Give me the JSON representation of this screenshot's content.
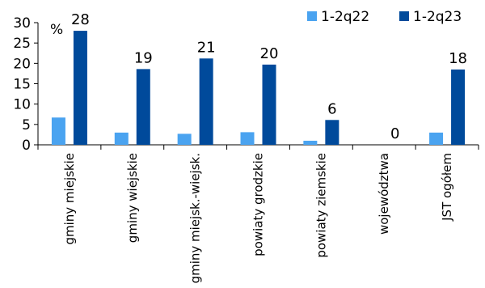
{
  "chart_data": {
    "type": "bar",
    "unit": "%",
    "categories": [
      "gminy miejskie",
      "gminy wiejskie",
      "gminy miejsk.-wiejsk.",
      "powiaty grodzkie",
      "powiaty ziemskie",
      "województwa",
      "JST ogółem"
    ],
    "series": [
      {
        "name": "1-2q22",
        "color": "#4aa3f0",
        "values": [
          6.7,
          3.0,
          2.7,
          3.1,
          1.0,
          0,
          3.0
        ],
        "data_labels": [
          "",
          "",
          "",
          "",
          "",
          "",
          ""
        ]
      },
      {
        "name": "1-2q23",
        "color": "#004a9b",
        "values": [
          28,
          18.6,
          21.2,
          19.7,
          6.1,
          0,
          18.5
        ],
        "data_labels": [
          "28",
          "19",
          "21",
          "20",
          "6",
          "0",
          "18"
        ]
      }
    ],
    "ylim": [
      0,
      30
    ],
    "yticks": [
      "0",
      "5",
      "10",
      "15",
      "20",
      "25",
      "30"
    ],
    "legend_position": "top-right",
    "grid": false
  }
}
